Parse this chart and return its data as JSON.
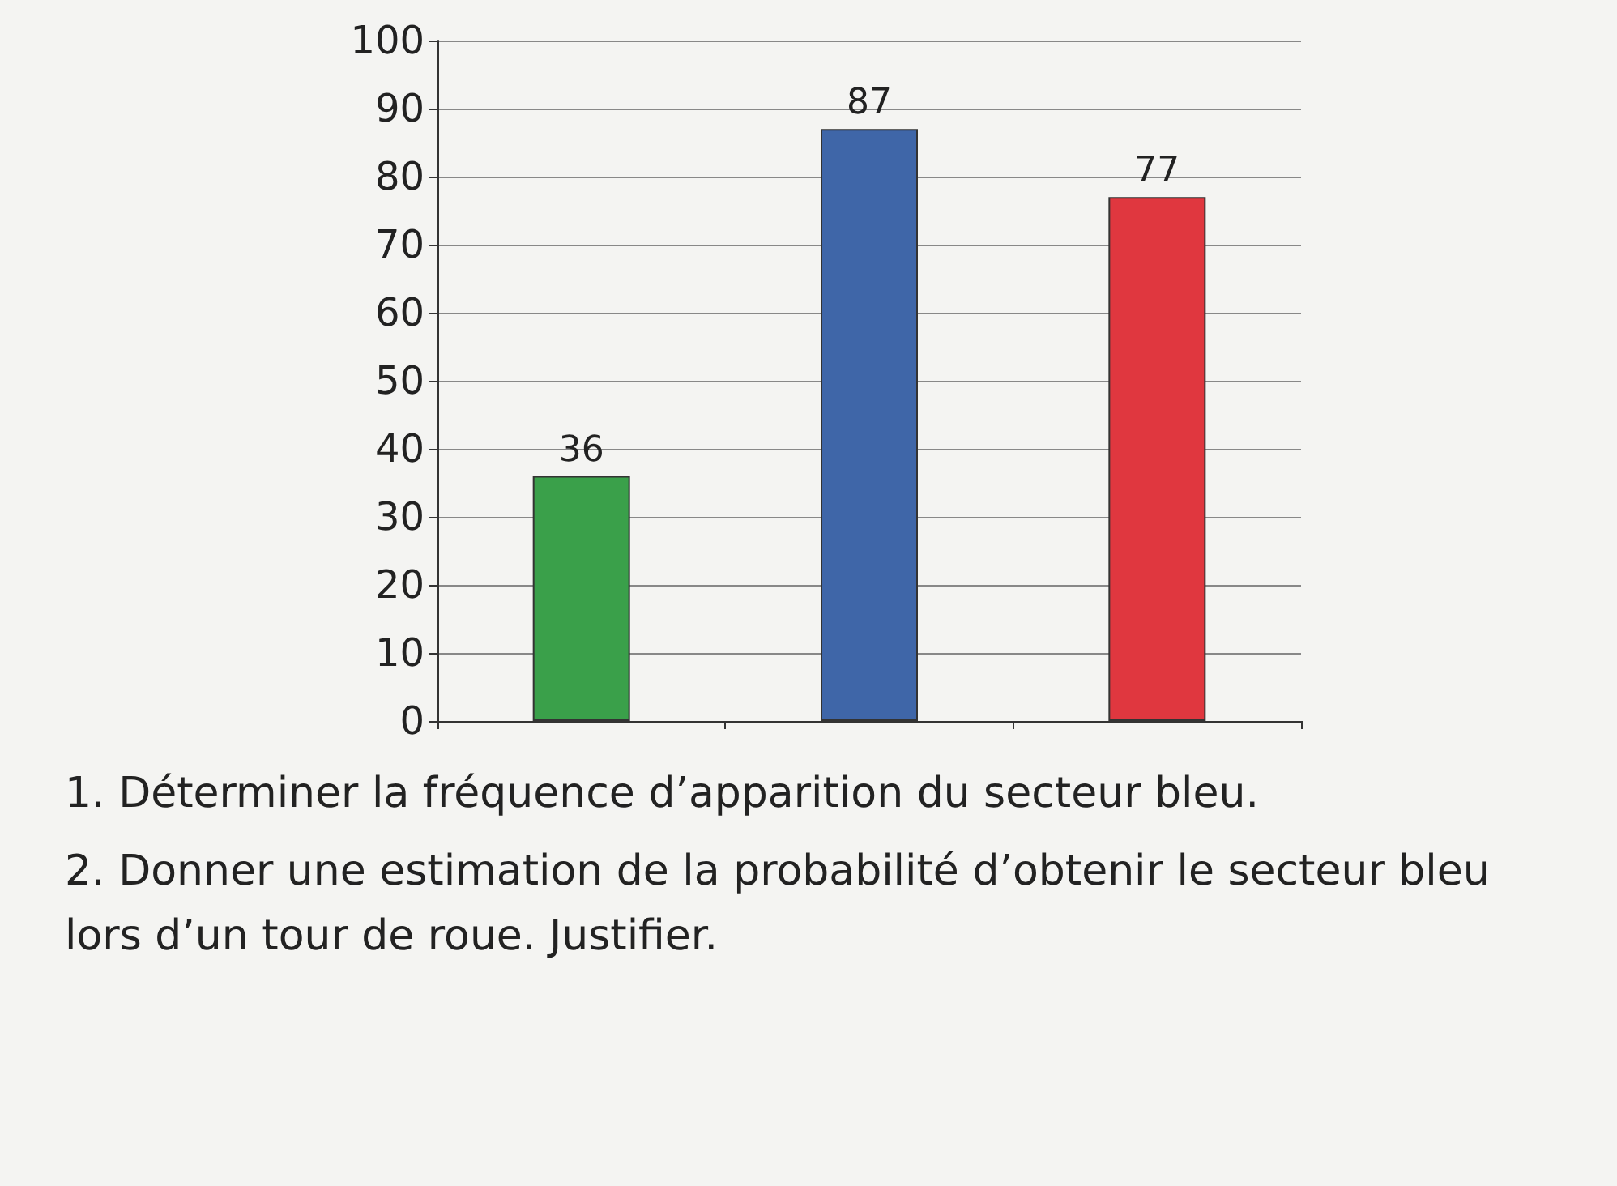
{
  "chart_data": {
    "type": "bar",
    "categories": [
      null,
      null,
      null
    ],
    "values": [
      36,
      87,
      77
    ],
    "colors": [
      "#3aa04a",
      "#3f66a8",
      "#e0373f"
    ],
    "ylim": [
      0,
      100
    ],
    "yticks": [
      0,
      10,
      20,
      30,
      40,
      50,
      60,
      70,
      80,
      90,
      100
    ],
    "grid": "y",
    "data_labels": true,
    "annotations": [
      "1. Déterminer la fréquence d’apparition du secteur bleu.",
      "2. Donner une estimation de la probabilité d’obtenir le secteur bleu lors d’un tour de roue. Justifier."
    ]
  }
}
